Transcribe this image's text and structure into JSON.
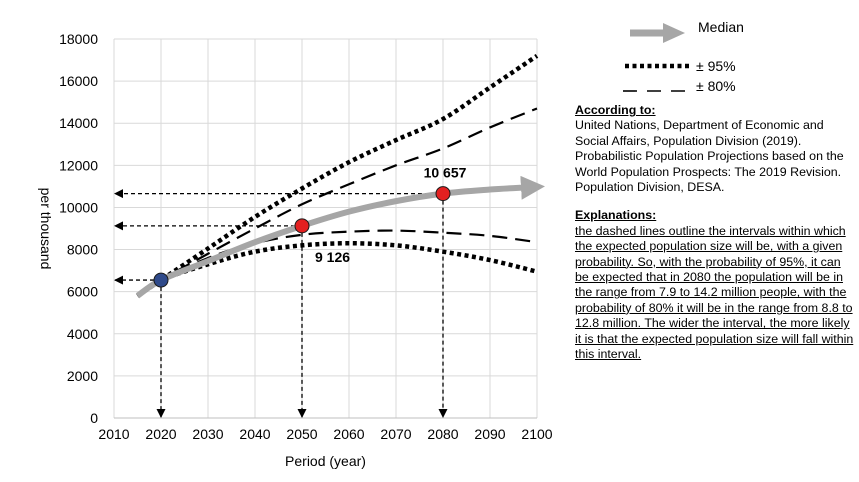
{
  "chart_data": {
    "type": "line",
    "title": "",
    "xlabel": "Period (year)",
    "ylabel": "per thousand",
    "xlim": [
      2010,
      2100
    ],
    "ylim": [
      0,
      18000
    ],
    "x_ticks": [
      2010,
      2020,
      2030,
      2040,
      2050,
      2060,
      2070,
      2080,
      2090,
      2100
    ],
    "y_ticks": [
      0,
      2000,
      4000,
      6000,
      8000,
      10000,
      12000,
      14000,
      16000,
      18000
    ],
    "grid": true,
    "legend_position": "top-right",
    "series": [
      {
        "name": "Median",
        "style": "solid-arrow",
        "color": "#a6a6a6",
        "x": [
          2015,
          2020,
          2030,
          2040,
          2050,
          2060,
          2070,
          2080,
          2090,
          2100
        ],
        "y": [
          5800,
          6550,
          7450,
          8350,
          9126,
          9800,
          10300,
          10657,
          10850,
          10950
        ]
      },
      {
        "name": "± 95%",
        "style": "dotted",
        "color": "#000000",
        "bound": "upper",
        "x": [
          2015,
          2020,
          2030,
          2040,
          2050,
          2060,
          2070,
          2080,
          2090,
          2100
        ],
        "y": [
          5800,
          6550,
          8050,
          9550,
          10900,
          12150,
          13200,
          14200,
          15700,
          17200
        ]
      },
      {
        "name": "± 95%",
        "style": "dotted",
        "color": "#000000",
        "bound": "lower",
        "x": [
          2015,
          2020,
          2030,
          2040,
          2050,
          2060,
          2070,
          2080,
          2090,
          2100
        ],
        "y": [
          5800,
          6550,
          7300,
          7900,
          8200,
          8300,
          8200,
          7900,
          7500,
          6950
        ]
      },
      {
        "name": "± 80%",
        "style": "dashed",
        "color": "#000000",
        "bound": "upper",
        "x": [
          2015,
          2020,
          2030,
          2040,
          2050,
          2060,
          2070,
          2080,
          2090,
          2100
        ],
        "y": [
          5800,
          6550,
          7800,
          9000,
          10150,
          11100,
          12000,
          12800,
          13800,
          14700
        ]
      },
      {
        "name": "± 80%",
        "style": "dashed",
        "color": "#000000",
        "bound": "lower",
        "x": [
          2015,
          2020,
          2030,
          2040,
          2050,
          2060,
          2070,
          2080,
          2090,
          2100
        ],
        "y": [
          5800,
          6550,
          7600,
          8300,
          8700,
          8850,
          8900,
          8800,
          8650,
          8350
        ]
      }
    ],
    "highlight_points": [
      {
        "x": 2020,
        "y": 6550,
        "color": "#2f4a8a"
      },
      {
        "x": 2050,
        "y": 9126,
        "color": "#e32020",
        "label": "9 126"
      },
      {
        "x": 2080,
        "y": 10657,
        "color": "#e32020",
        "label": "10 657"
      }
    ],
    "legend": [
      {
        "label": "Median",
        "style": "arrow"
      },
      {
        "label": "± 95%",
        "style": "dotted"
      },
      {
        "label": "± 80%",
        "style": "dashed"
      }
    ]
  },
  "side_panel": {
    "source_heading": "According to:",
    "source_text": "United Nations, Department of Economic and Social Affairs, Population Division (2019). Probabilistic Population Projections based on the World Population Prospects: The 2019 Revision. Population Division, DESA.",
    "explanation_heading": "Explanations:",
    "explanation_text": "the dashed lines outline the intervals within which the expected population size will be, with a given probability. So, with the probability of 95%, it can be expected that in 2080 the population will be in the range from 7.9 to 14.2 million people, with the probability of 80% it will be in the range from 8.8 to 12.8 million. The wider the interval, the more likely it is that the expected population size will fall within this interval."
  }
}
